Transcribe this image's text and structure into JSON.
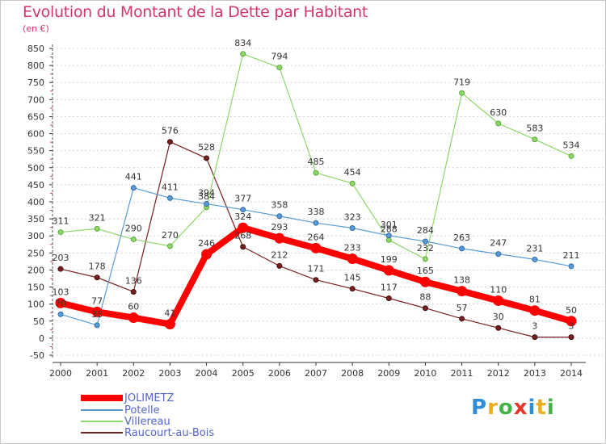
{
  "title": "Evolution du Montant de la Dette par Habitant",
  "subtitle": "(en €)",
  "logo_text": "Proxiti",
  "logo_colors": [
    "#2e8fd8",
    "#e8b020",
    "#46b348",
    "#e8342a",
    "#2e8fd8",
    "#e8b020",
    "#46b348"
  ],
  "chart_data": {
    "type": "line",
    "x": [
      2000,
      2001,
      2002,
      2003,
      2004,
      2005,
      2006,
      2007,
      2008,
      2009,
      2010,
      2011,
      2012,
      2013,
      2014
    ],
    "ylim": [
      -50,
      850
    ],
    "yticks": [
      -50,
      0,
      50,
      100,
      150,
      200,
      250,
      300,
      350,
      400,
      450,
      500,
      550,
      600,
      650,
      700,
      750,
      800,
      850
    ],
    "grid": "horizontal dashed",
    "legend_position": "bottom-left",
    "series": [
      {
        "name": "JOLIMETZ",
        "color": "#ff0000",
        "x": [
          2000,
          2001,
          2002,
          2003,
          2004,
          2005,
          2006,
          2007,
          2008,
          2009,
          2010,
          2011,
          2012,
          2013,
          2014
        ],
        "values": [
          103,
          77,
          60,
          41,
          246,
          324,
          293,
          264,
          233,
          199,
          165,
          138,
          110,
          81,
          50
        ],
        "labels": [
          "103",
          "77",
          "60",
          "41",
          "246",
          "324",
          "293",
          "264",
          "233",
          "199",
          "165",
          "138",
          "110",
          "81",
          "50"
        ]
      },
      {
        "name": "Potelle",
        "color": "#5b9bd5",
        "x": [
          2000,
          2001,
          2002,
          2003,
          2004,
          2005,
          2006,
          2007,
          2008,
          2009,
          2010,
          2011,
          2012,
          2013,
          2014
        ],
        "values": [
          70,
          38,
          441,
          411,
          394,
          377,
          358,
          338,
          323,
          301,
          284,
          263,
          247,
          231,
          211
        ],
        "labels": [
          "70",
          "38",
          "441",
          "411",
          "394",
          "377",
          "358",
          "338",
          "323",
          "301",
          "284",
          "263",
          "247",
          "231",
          "211"
        ]
      },
      {
        "name": "Villereau",
        "color": "#8fd66a",
        "x": [
          2000,
          2001,
          2002,
          2003,
          2004,
          2005,
          2006,
          2007,
          2008,
          2009,
          2010,
          2011,
          2012,
          2013,
          2014
        ],
        "values": [
          311,
          321,
          290,
          270,
          384,
          834,
          794,
          485,
          454,
          288,
          232,
          719,
          630,
          583,
          534
        ],
        "labels": [
          "311",
          "321",
          "290",
          "270",
          "384",
          "834",
          "794",
          "485",
          "454",
          "288",
          "232",
          "719",
          "630",
          "583",
          "534"
        ]
      },
      {
        "name": "Raucourt-au-Bois",
        "color": "#7a1f1f",
        "x": [
          2000,
          2001,
          2002,
          2003,
          2004,
          2005,
          2006,
          2007,
          2008,
          2009,
          2010,
          2011,
          2012,
          2013,
          2014
        ],
        "values": [
          203,
          178,
          136,
          576,
          528,
          268,
          212,
          171,
          145,
          117,
          88,
          57,
          30,
          3,
          3
        ],
        "labels": [
          "203",
          "178",
          "136",
          "576",
          "528",
          "268",
          "212",
          "171",
          "145",
          "117",
          "88",
          "57",
          "30",
          "3",
          "3"
        ]
      }
    ]
  }
}
